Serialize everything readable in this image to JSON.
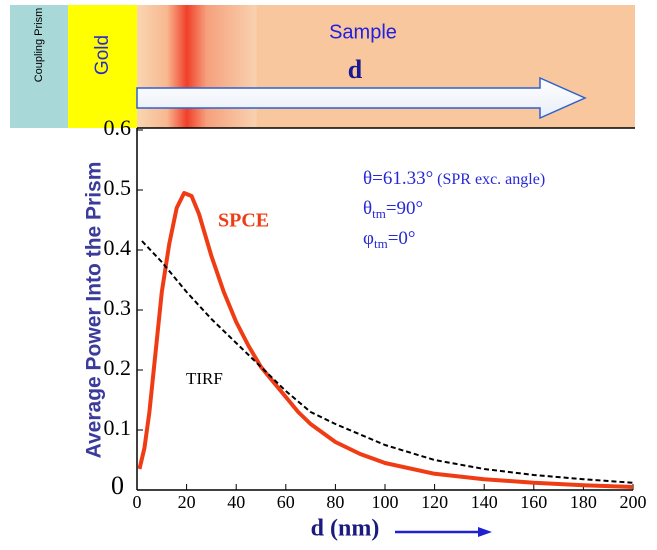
{
  "chart_data": {
    "type": "line",
    "diagram": {
      "prism": "Coupling Prism",
      "gold": "Gold",
      "sample": "Sample",
      "arrow_label": "d"
    },
    "ylabel": "Average Power Into the Prism",
    "xlabel": "d (nm)",
    "annotations": {
      "theta": "θ=61.33°",
      "theta_note": " (SPR exc. angle)",
      "theta_tm": [
        "θ",
        "tm",
        "=90°"
      ],
      "phi_tm": [
        "φ",
        "tm",
        "=0°"
      ]
    },
    "xlim": [
      0,
      200
    ],
    "xticks": [
      0,
      20,
      40,
      60,
      80,
      100,
      120,
      140,
      160,
      180,
      200
    ],
    "ylim": [
      0,
      0.6
    ],
    "yticks": [
      0,
      0.1,
      0.2,
      0.3,
      0.4,
      0.5,
      0.6
    ],
    "series": [
      {
        "name": "SPCE",
        "color": "#f03c14",
        "dashed": false,
        "x": [
          1,
          3,
          5,
          8,
          10,
          13,
          16,
          19,
          22,
          25,
          30,
          35,
          40,
          45,
          50,
          55,
          60,
          65,
          70,
          80,
          90,
          100,
          120,
          140,
          160,
          180,
          200
        ],
        "values": [
          0.035,
          0.07,
          0.13,
          0.25,
          0.33,
          0.41,
          0.47,
          0.495,
          0.49,
          0.46,
          0.39,
          0.33,
          0.28,
          0.24,
          0.205,
          0.18,
          0.155,
          0.13,
          0.11,
          0.08,
          0.06,
          0.045,
          0.027,
          0.018,
          0.012,
          0.008,
          0.005
        ]
      },
      {
        "name": "TIRF",
        "color": "#000000",
        "dashed": true,
        "x": [
          2,
          10,
          20,
          30,
          40,
          50,
          60,
          70,
          80,
          100,
          120,
          140,
          160,
          180,
          200
        ],
        "values": [
          0.415,
          0.38,
          0.33,
          0.285,
          0.245,
          0.205,
          0.165,
          0.13,
          0.11,
          0.075,
          0.05,
          0.035,
          0.025,
          0.018,
          0.012
        ]
      }
    ]
  }
}
